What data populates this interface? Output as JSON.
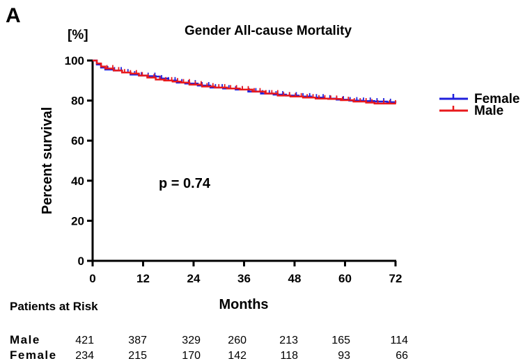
{
  "panel_label": "A",
  "chart_data": {
    "type": "line",
    "title": "Gender All-cause Mortality",
    "y_unit": "[%]",
    "xlabel": "Months",
    "ylabel": "Percent survival",
    "xlim": [
      0,
      72
    ],
    "ylim": [
      0,
      100
    ],
    "x_ticks": [
      0,
      12,
      24,
      36,
      48,
      60,
      72
    ],
    "y_ticks": [
      0,
      20,
      40,
      60,
      80,
      100
    ],
    "grid": false,
    "legend_position": "right",
    "annotation": "p = 0.74",
    "series": [
      {
        "name": "Female",
        "color": "#1f1fdc",
        "x": [
          0,
          1,
          2,
          3,
          5,
          7,
          9,
          11,
          13,
          15,
          16,
          18,
          20,
          22,
          25,
          28,
          31,
          34,
          37,
          40,
          43,
          46,
          49,
          52,
          55,
          58,
          61,
          64,
          67,
          70,
          72
        ],
        "y": [
          100,
          98,
          96.5,
          95.5,
          95,
          94,
          93,
          92.5,
          92.2,
          92,
          91,
          90,
          89,
          88.5,
          87.5,
          86.5,
          86,
          85.5,
          84.5,
          83.5,
          83,
          82.5,
          82,
          81.5,
          81,
          80.5,
          80,
          79.8,
          79.5,
          79.2,
          79
        ]
      },
      {
        "name": "Male",
        "color": "#e8191c",
        "x": [
          0,
          1,
          2,
          3,
          5,
          7,
          9,
          11,
          13,
          15,
          17,
          19,
          21,
          23,
          26,
          29,
          32,
          35,
          38,
          41,
          44,
          47,
          50,
          53,
          56,
          59,
          62,
          65,
          67,
          70,
          72
        ],
        "y": [
          100,
          98.5,
          97,
          96,
          95,
          94,
          93.5,
          92.5,
          91.5,
          90.5,
          90,
          89.5,
          89,
          88,
          87,
          86.5,
          86,
          85.5,
          84.5,
          83.5,
          82.5,
          82,
          81.5,
          81,
          80.8,
          80.2,
          79.5,
          79,
          78.5,
          78.5,
          78.5
        ]
      }
    ],
    "risk_table": {
      "title": "Patients at Risk",
      "times": [
        0,
        12,
        24,
        36,
        48,
        60,
        72
      ],
      "rows": [
        {
          "name": "Male",
          "values": [
            "421",
            "387",
            "329",
            "260",
            "213",
            "165",
            "114"
          ]
        },
        {
          "name": "Female",
          "values": [
            "234",
            "215",
            "170",
            "142",
            "118",
            "93",
            "66"
          ]
        }
      ]
    }
  }
}
